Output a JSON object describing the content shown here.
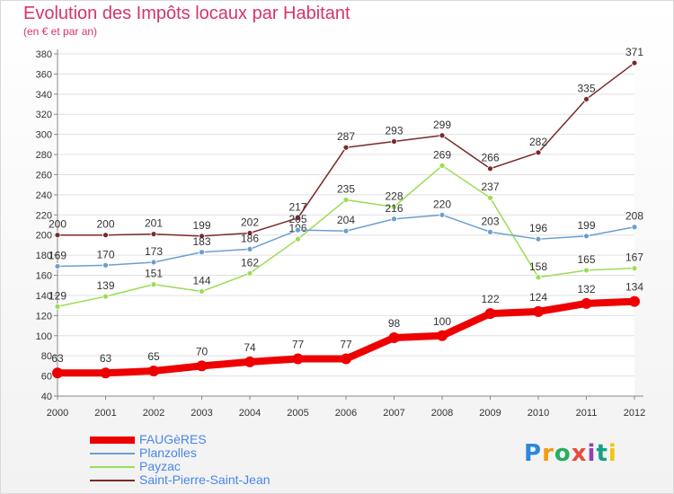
{
  "header": {
    "title": "Evolution des Impôts locaux par Habitant",
    "subtitle": "(en € et par an)"
  },
  "logo": {
    "text": "Proxiti",
    "letters": [
      "P",
      "r",
      "o",
      "x",
      "i",
      "t",
      "i"
    ]
  },
  "chart_data": {
    "type": "line",
    "x": [
      2000,
      2001,
      2002,
      2003,
      2004,
      2005,
      2006,
      2007,
      2008,
      2009,
      2010,
      2011,
      2012
    ],
    "ylim": [
      40,
      380
    ],
    "yticks": [
      40,
      60,
      80,
      100,
      120,
      140,
      160,
      180,
      200,
      220,
      240,
      260,
      280,
      300,
      320,
      340,
      360,
      380
    ],
    "grid": "horizontal",
    "legend_position": "bottom-left",
    "series": [
      {
        "name": "FAUGèRES",
        "color": "#ee0000",
        "values": [
          63,
          63,
          65,
          70,
          74,
          77,
          77,
          98,
          100,
          122,
          124,
          132,
          134
        ]
      },
      {
        "name": "Planzolles",
        "color": "#6a9fd0",
        "values": [
          169,
          170,
          173,
          183,
          186,
          205,
          204,
          216,
          220,
          203,
          196,
          199,
          208
        ]
      },
      {
        "name": "Payzac",
        "color": "#99dd55",
        "values": [
          129,
          139,
          151,
          144,
          162,
          196,
          235,
          228,
          269,
          237,
          158,
          165,
          167
        ]
      },
      {
        "name": "Saint-Pierre-Saint-Jean",
        "color": "#7a2a2a",
        "values": [
          200,
          200,
          201,
          199,
          202,
          217,
          287,
          293,
          299,
          266,
          282,
          335,
          371
        ]
      }
    ]
  }
}
